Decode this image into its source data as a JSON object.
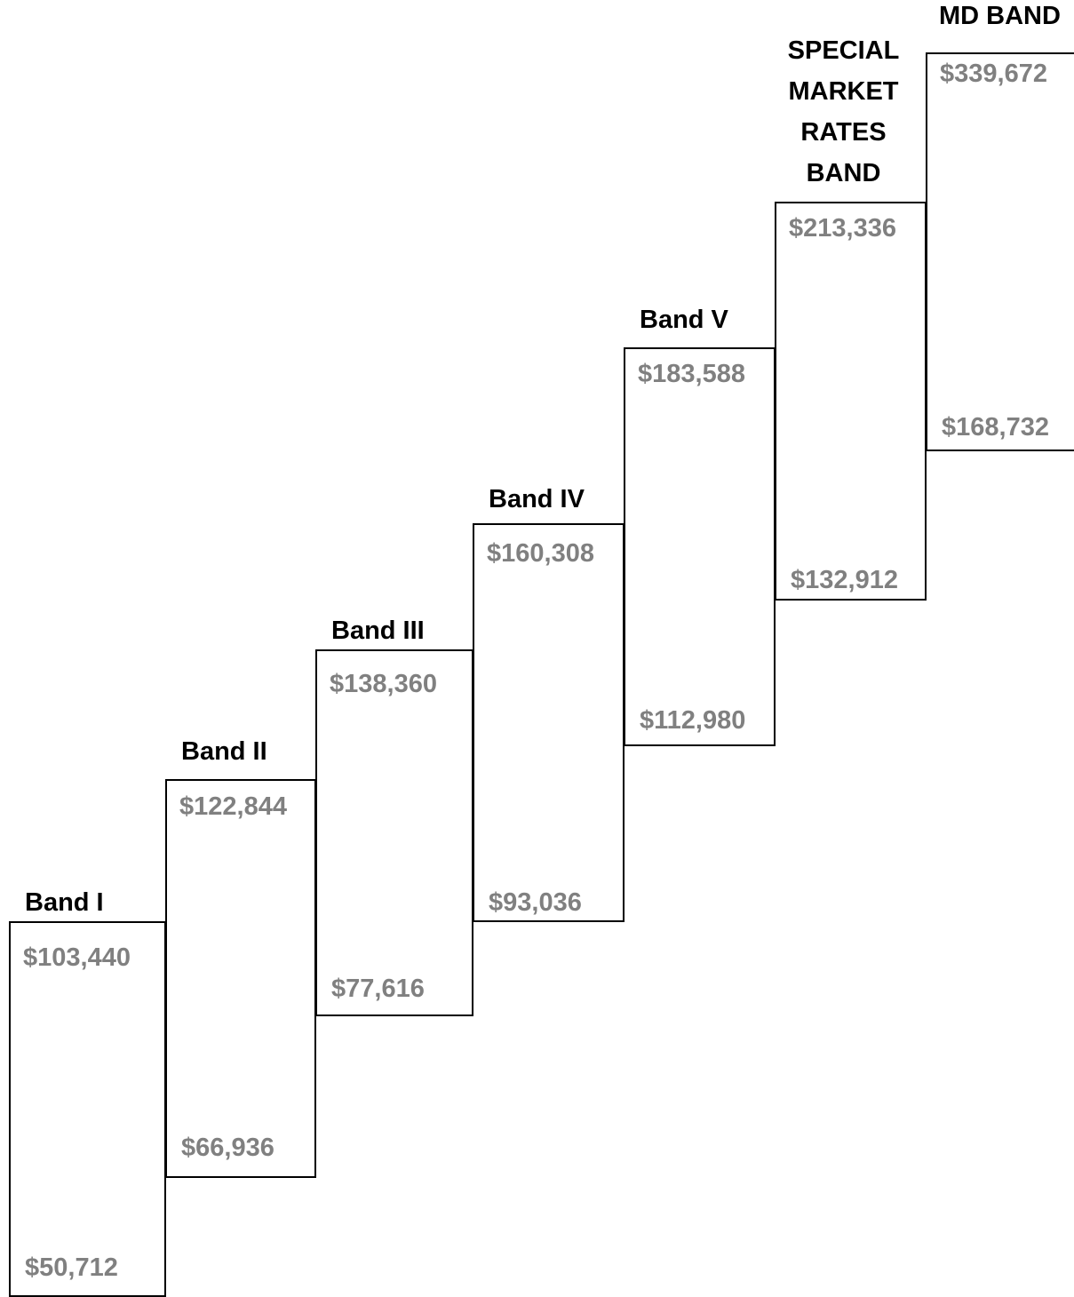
{
  "bands": [
    {
      "label": [
        "Band I"
      ],
      "max": "$103,440",
      "min": "$50,712"
    },
    {
      "label": [
        "Band II"
      ],
      "max": "$122,844",
      "min": "$66,936"
    },
    {
      "label": [
        "Band III"
      ],
      "max": "$138,360",
      "min": "$77,616"
    },
    {
      "label": [
        "Band IV"
      ],
      "max": "$160,308",
      "min": "$93,036"
    },
    {
      "label": [
        "Band V"
      ],
      "max": "$183,588",
      "min": "$112,980"
    },
    {
      "label": [
        "SPECIAL",
        "MARKET",
        "RATES",
        "BAND"
      ],
      "max": "$213,336",
      "min": "$132,912"
    },
    {
      "label": [
        "MD BAND"
      ],
      "max": "$339,672",
      "min": "$168,732"
    }
  ]
}
